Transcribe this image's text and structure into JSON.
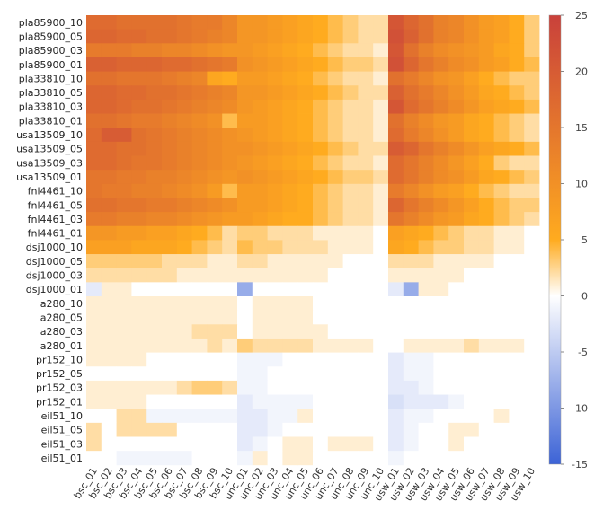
{
  "chart_data": {
    "type": "heatmap",
    "title": "",
    "xlabel": "",
    "ylabel": "",
    "rows": [
      "pla85900_10",
      "pla85900_05",
      "pla85900_03",
      "pla85900_01",
      "pla33810_10",
      "pla33810_05",
      "pla33810_03",
      "pla33810_01",
      "usa13509_10",
      "usa13509_05",
      "usa13509_03",
      "usa13509_01",
      "fnl4461_10",
      "fnl4461_05",
      "fnl4461_03",
      "fnl4461_01",
      "dsj1000_10",
      "dsj1000_05",
      "dsj1000_03",
      "dsj1000_01",
      "a280_10",
      "a280_05",
      "a280_03",
      "a280_01",
      "pr152_10",
      "pr152_05",
      "pr152_03",
      "pr152_01",
      "eil51_10",
      "eil51_05",
      "eil51_03",
      "eil51_01"
    ],
    "columns": [
      "bsc_01",
      "bsc_02",
      "bsc_03",
      "bsc_04",
      "bsc_05",
      "bsc_06",
      "bsc_07",
      "bsc_08",
      "bsc_09",
      "bsc_10",
      "unc_01",
      "unc_02",
      "unc_03",
      "unc_04",
      "unc_05",
      "unc_06",
      "unc_07",
      "unc_08",
      "unc_09",
      "unc_10",
      "usw_01",
      "usw_02",
      "usw_03",
      "usw_04",
      "usw_05",
      "usw_06",
      "usw_07",
      "usw_08",
      "usw_09",
      "usw_10"
    ],
    "values": [
      [
        17,
        17,
        16,
        16,
        16,
        16,
        15,
        14,
        14,
        12,
        9,
        9,
        8,
        7,
        6,
        5,
        4,
        3,
        2,
        2,
        21,
        18,
        16,
        13,
        12,
        10,
        8,
        7,
        5,
        3
      ],
      [
        18,
        18,
        17,
        17,
        16,
        16,
        15,
        14,
        13,
        12,
        9,
        9,
        8,
        7,
        6,
        5,
        4,
        3,
        2,
        2,
        22,
        19,
        16,
        13,
        12,
        10,
        8,
        7,
        5,
        3
      ],
      [
        14,
        14,
        14,
        13,
        13,
        12,
        12,
        11,
        10,
        9,
        9,
        8,
        7,
        6,
        5,
        4,
        3,
        2,
        2,
        1,
        21,
        16,
        13,
        11,
        10,
        9,
        8,
        6,
        5,
        3
      ],
      [
        19,
        19,
        18,
        18,
        18,
        17,
        17,
        16,
        15,
        14,
        10,
        9,
        8,
        7,
        6,
        5,
        4,
        3,
        3,
        2,
        22,
        18,
        15,
        13,
        11,
        10,
        8,
        7,
        5,
        4
      ],
      [
        16,
        16,
        15,
        15,
        15,
        14,
        13,
        12,
        6,
        5,
        8,
        8,
        7,
        6,
        5,
        4,
        3,
        2,
        2,
        1,
        16,
        14,
        12,
        10,
        9,
        7,
        5,
        4,
        3,
        3
      ],
      [
        18,
        18,
        17,
        17,
        16,
        16,
        15,
        14,
        13,
        12,
        9,
        9,
        8,
        7,
        6,
        5,
        4,
        3,
        2,
        2,
        19,
        16,
        14,
        12,
        10,
        8,
        6,
        5,
        4,
        3
      ],
      [
        18,
        18,
        17,
        16,
        16,
        15,
        14,
        13,
        12,
        11,
        9,
        8,
        7,
        6,
        5,
        4,
        3,
        2,
        2,
        1,
        21,
        17,
        15,
        13,
        11,
        9,
        7,
        6,
        5,
        4
      ],
      [
        16,
        16,
        15,
        14,
        14,
        13,
        12,
        11,
        10,
        4,
        8,
        8,
        7,
        6,
        5,
        4,
        3,
        2,
        2,
        1,
        16,
        13,
        11,
        9,
        8,
        6,
        5,
        4,
        3,
        2
      ],
      [
        17,
        20,
        20,
        16,
        15,
        14,
        13,
        12,
        11,
        10,
        9,
        8,
        7,
        6,
        5,
        4,
        3,
        2,
        2,
        1,
        17,
        14,
        12,
        10,
        8,
        6,
        5,
        4,
        3,
        2
      ],
      [
        17,
        17,
        16,
        16,
        15,
        14,
        13,
        12,
        11,
        10,
        10,
        9,
        8,
        7,
        6,
        5,
        4,
        3,
        2,
        2,
        20,
        18,
        15,
        13,
        11,
        9,
        7,
        6,
        5,
        4
      ],
      [
        17,
        17,
        16,
        15,
        15,
        14,
        13,
        12,
        11,
        10,
        9,
        8,
        7,
        6,
        5,
        4,
        3,
        2,
        2,
        1,
        17,
        15,
        13,
        11,
        9,
        7,
        5,
        3,
        2,
        2
      ],
      [
        15,
        15,
        14,
        14,
        13,
        13,
        12,
        11,
        10,
        9,
        10,
        9,
        8,
        7,
        6,
        5,
        4,
        3,
        3,
        2,
        17,
        15,
        13,
        11,
        10,
        8,
        6,
        5,
        4,
        3
      ],
      [
        15,
        14,
        14,
        13,
        13,
        12,
        11,
        10,
        8,
        4,
        8,
        8,
        7,
        6,
        5,
        4,
        3,
        2,
        2,
        1,
        14,
        12,
        10,
        8,
        7,
        5,
        4,
        3,
        2,
        2
      ],
      [
        16,
        16,
        15,
        15,
        14,
        14,
        13,
        12,
        11,
        10,
        8,
        8,
        7,
        6,
        5,
        4,
        3,
        2,
        2,
        1,
        18,
        15,
        13,
        11,
        9,
        7,
        5,
        4,
        3,
        3
      ],
      [
        14,
        14,
        13,
        13,
        12,
        12,
        11,
        10,
        9,
        8,
        8,
        7,
        6,
        5,
        5,
        4,
        3,
        2,
        2,
        1,
        15,
        13,
        11,
        9,
        8,
        6,
        5,
        4,
        3,
        2
      ],
      [
        9,
        9,
        8,
        8,
        7,
        7,
        6,
        5,
        4,
        2,
        3,
        3,
        2,
        2,
        2,
        1,
        1,
        1,
        1,
        0,
        7,
        6,
        5,
        4,
        3,
        2,
        2,
        1,
        1,
        0
      ],
      [
        7,
        7,
        7,
        6,
        6,
        6,
        5,
        4,
        3,
        2,
        4,
        3,
        3,
        2,
        2,
        2,
        1,
        1,
        1,
        0,
        6,
        5,
        4,
        3,
        3,
        2,
        2,
        1,
        1,
        0
      ],
      [
        3,
        3,
        3,
        3,
        3,
        2,
        2,
        2,
        1,
        1,
        2,
        2,
        1,
        1,
        1,
        1,
        1,
        0,
        0,
        0,
        2,
        2,
        2,
        1,
        1,
        1,
        1,
        0,
        0,
        0
      ],
      [
        2,
        2,
        2,
        2,
        2,
        2,
        1,
        1,
        1,
        1,
        1,
        1,
        1,
        1,
        1,
        1,
        0,
        0,
        0,
        0,
        1,
        1,
        1,
        1,
        1,
        0,
        0,
        0,
        0,
        0
      ],
      [
        -2,
        1,
        1,
        0,
        0,
        0,
        0,
        0,
        0,
        0,
        -8,
        0,
        0,
        0,
        0,
        0,
        0,
        0,
        0,
        0,
        -2,
        -8,
        1,
        1,
        0,
        0,
        0,
        0,
        0,
        0
      ],
      [
        1,
        1,
        1,
        1,
        1,
        1,
        1,
        1,
        1,
        1,
        0,
        1,
        1,
        1,
        1,
        0,
        0,
        0,
        0,
        0,
        0,
        0,
        0,
        0,
        0,
        0,
        0,
        0,
        0,
        0
      ],
      [
        1,
        1,
        1,
        1,
        1,
        1,
        1,
        1,
        1,
        1,
        0,
        1,
        1,
        1,
        1,
        0,
        0,
        0,
        0,
        0,
        0,
        0,
        0,
        0,
        0,
        0,
        0,
        0,
        0,
        0
      ],
      [
        1,
        1,
        1,
        1,
        1,
        1,
        1,
        2,
        2,
        2,
        0,
        1,
        1,
        1,
        1,
        1,
        0,
        0,
        0,
        0,
        0,
        0,
        0,
        0,
        0,
        0,
        0,
        0,
        0,
        0
      ],
      [
        1,
        1,
        1,
        1,
        1,
        1,
        1,
        1,
        2,
        1,
        3,
        2,
        2,
        2,
        2,
        1,
        1,
        1,
        1,
        0,
        0,
        1,
        1,
        1,
        1,
        2,
        1,
        1,
        1,
        0
      ],
      [
        1,
        1,
        1,
        1,
        0,
        0,
        0,
        0,
        0,
        0,
        -1,
        -1,
        -1,
        0,
        0,
        0,
        0,
        0,
        0,
        0,
        -2,
        -1,
        -1,
        0,
        0,
        0,
        0,
        0,
        0,
        0
      ],
      [
        0,
        0,
        0,
        0,
        0,
        0,
        0,
        0,
        0,
        0,
        -1,
        -1,
        0,
        0,
        0,
        0,
        0,
        0,
        0,
        0,
        -2,
        -1,
        -1,
        0,
        0,
        0,
        0,
        0,
        0,
        0
      ],
      [
        1,
        1,
        1,
        1,
        1,
        1,
        2,
        3,
        3,
        2,
        -1,
        -1,
        0,
        0,
        0,
        0,
        0,
        0,
        0,
        0,
        -2,
        -2,
        -1,
        0,
        0,
        0,
        0,
        0,
        0,
        0
      ],
      [
        1,
        1,
        1,
        1,
        0,
        0,
        0,
        0,
        0,
        0,
        -2,
        -1,
        -1,
        -1,
        -1,
        0,
        0,
        0,
        0,
        0,
        -3,
        -2,
        -2,
        -2,
        -1,
        0,
        0,
        0,
        0,
        0
      ],
      [
        0,
        0,
        2,
        2,
        -1,
        -1,
        -1,
        -1,
        -1,
        -1,
        -2,
        -2,
        -1,
        -1,
        1,
        0,
        0,
        0,
        0,
        0,
        -2,
        -1,
        -1,
        0,
        0,
        0,
        0,
        1,
        0,
        0
      ],
      [
        2,
        0,
        2,
        2,
        2,
        2,
        0,
        0,
        0,
        0,
        -2,
        -2,
        -1,
        0,
        0,
        0,
        0,
        0,
        0,
        0,
        -2,
        -1,
        0,
        0,
        1,
        1,
        0,
        0,
        0,
        0
      ],
      [
        2,
        0,
        0,
        0,
        0,
        0,
        0,
        0,
        0,
        0,
        -2,
        -1,
        0,
        1,
        1,
        0,
        1,
        1,
        1,
        0,
        -2,
        -1,
        0,
        0,
        1,
        0,
        0,
        0,
        0,
        0
      ],
      [
        0,
        0,
        -1,
        -1,
        -1,
        -1,
        -1,
        0,
        0,
        0,
        -1,
        1,
        0,
        1,
        1,
        0,
        0,
        0,
        0,
        0,
        -1,
        0,
        0,
        0,
        0,
        0,
        0,
        0,
        0,
        0
      ]
    ],
    "colorbar": {
      "min": -15,
      "max": 25,
      "ticks": [
        "25",
        "20",
        "15",
        "10",
        "5",
        "0",
        "-5",
        "-10",
        "-15"
      ],
      "tick_values": [
        25,
        20,
        15,
        10,
        5,
        0,
        -5,
        -10,
        -15
      ],
      "colors": {
        "low": "#3c63d6",
        "zero": "#ffffff",
        "mid": "#ffab1f",
        "high": "#c9413b"
      }
    }
  }
}
